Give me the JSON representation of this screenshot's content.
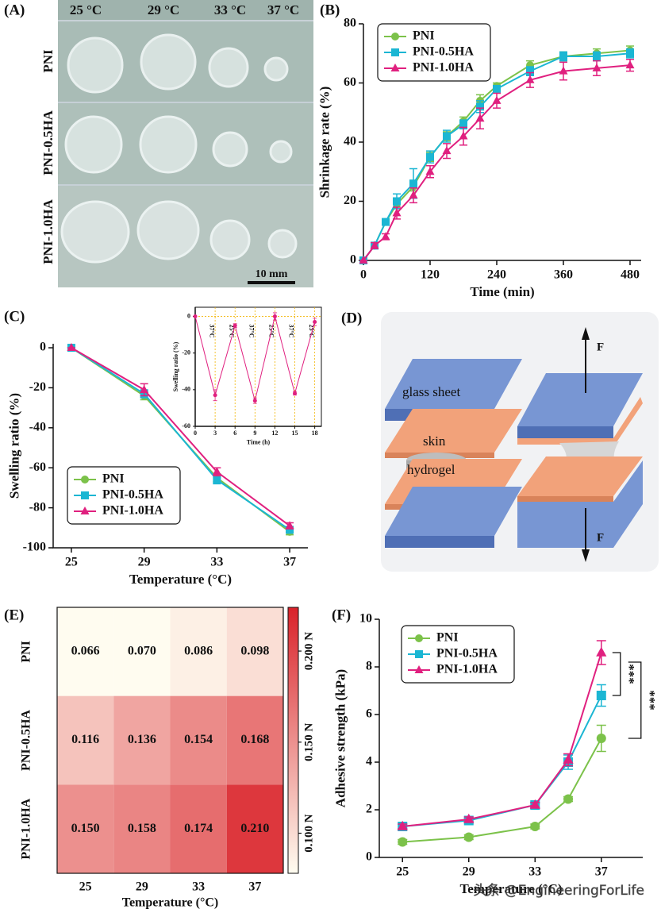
{
  "photo": {
    "panel": "(A)",
    "columns": [
      "25 °C",
      "29 °C",
      "33 °C",
      "37 °C"
    ],
    "rows": [
      "PNI",
      "PNI-0.5HA",
      "PNI-1.0HA"
    ],
    "scale_bar": "10 mm"
  },
  "diagram": {
    "panel": "(D)",
    "glass": "glass sheet",
    "skin": "skin",
    "gel": "hydrogel",
    "force_top": "F",
    "force_bottom": "F"
  },
  "watermark": "头条 @EngineeringForLife",
  "chart_data": [
    {
      "type": "line",
      "panel": "(B)",
      "xlabel": "Time (min)",
      "ylabel": "Shrinkage rate (%)",
      "x": [
        0,
        20,
        40,
        60,
        90,
        120,
        150,
        180,
        210,
        240,
        300,
        360,
        420,
        480
      ],
      "series": [
        {
          "name": "PNI",
          "color": "#7cc24a",
          "marker": "circle",
          "values": [
            0,
            5,
            13,
            19,
            25,
            35,
            42,
            47,
            54,
            59,
            66,
            69,
            70,
            71
          ],
          "errors": [
            0,
            1,
            1,
            1.5,
            1.5,
            1.5,
            1.5,
            1.5,
            2,
            1,
            1.5,
            1.5,
            1.5,
            1.5
          ]
        },
        {
          "name": "PNI-0.5HA",
          "color": "#1bb6d3",
          "marker": "square",
          "values": [
            0,
            5,
            13,
            20,
            26,
            35,
            42,
            46,
            52,
            58,
            64,
            69,
            69,
            70
          ],
          "errors": [
            0,
            1,
            1,
            2.5,
            5,
            2,
            2,
            1.5,
            2,
            1,
            1.5,
            1.5,
            1.5,
            1.5
          ]
        },
        {
          "name": "PNI-1.0HA",
          "color": "#e0207f",
          "marker": "triangle",
          "values": [
            0,
            5,
            8,
            16,
            22,
            30,
            37,
            42,
            48,
            54,
            61,
            64,
            65,
            66
          ],
          "errors": [
            0,
            1,
            1,
            2,
            2.5,
            2,
            2.5,
            3,
            3.5,
            2.5,
            2.5,
            3,
            2.5,
            2
          ]
        }
      ],
      "xlim": [
        0,
        500
      ],
      "xticks": [
        0,
        120,
        240,
        360,
        480
      ],
      "ylim": [
        0,
        80
      ],
      "yticks": [
        0,
        20,
        40,
        60,
        80
      ],
      "legend": "upper left"
    },
    {
      "type": "line",
      "panel": "(C)",
      "xlabel": "Temperature (°C)",
      "ylabel": "Swelling ratio (%)",
      "x": [
        25,
        29,
        33,
        37
      ],
      "series": [
        {
          "name": "PNI",
          "color": "#7cc24a",
          "marker": "circle",
          "values": [
            0,
            -24,
            -65,
            -92
          ],
          "errors": [
            0,
            2,
            2,
            1.5
          ]
        },
        {
          "name": "PNI-0.5HA",
          "color": "#1bb6d3",
          "marker": "square",
          "values": [
            0,
            -23,
            -66,
            -91
          ],
          "errors": [
            0,
            2,
            2,
            1.5
          ]
        },
        {
          "name": "PNI-1.0HA",
          "color": "#e0207f",
          "marker": "triangle",
          "values": [
            0,
            -21,
            -62,
            -89
          ],
          "errors": [
            0,
            3,
            2,
            1.5
          ]
        }
      ],
      "xlim": [
        24,
        38
      ],
      "xticks": [
        25,
        29,
        33,
        37
      ],
      "ylim": [
        -100,
        2
      ],
      "yticks": [
        -100,
        -80,
        -60,
        -40,
        -20,
        0
      ],
      "legend": "lower left"
    },
    {
      "type": "line",
      "inset": true,
      "xlabel": "Time (h)",
      "ylabel": "Swelling ratio (%)",
      "x": [
        0,
        3,
        6,
        9,
        12,
        15,
        18
      ],
      "series": [
        {
          "color": "#e0207f",
          "marker": "circle",
          "values": [
            0,
            -43,
            -5,
            -46,
            0,
            -42,
            -3
          ],
          "errors": [
            0,
            3,
            1,
            1.5,
            2,
            1,
            2
          ]
        }
      ],
      "phase_labels": [
        "37°C",
        "25°C",
        "37°C",
        "25°C",
        "37°C",
        "25°C"
      ],
      "xlim": [
        0,
        19
      ],
      "xticks": [
        0,
        3,
        6,
        9,
        12,
        15,
        18
      ],
      "ylim": [
        -60,
        5
      ],
      "yticks": [
        -60,
        -40,
        -20,
        0
      ],
      "grid_x": true
    },
    {
      "type": "heatmap",
      "panel": "(E)",
      "xlabel": "Temperature (°C)",
      "columns": [
        25,
        29,
        33,
        37
      ],
      "rows": [
        "PNI",
        "PNI-0.5HA",
        "PNI-1.0HA"
      ],
      "values": [
        [
          0.066,
          0.07,
          0.086,
          0.098
        ],
        [
          0.116,
          0.136,
          0.154,
          0.168
        ],
        [
          0.15,
          0.158,
          0.174,
          0.21
        ]
      ],
      "value_labels": [
        [
          "0.066",
          "0.070",
          "0.086",
          "0.098"
        ],
        [
          "0.116",
          "0.136",
          "0.154",
          "0.168"
        ],
        [
          "0.150",
          "0.158",
          "0.174",
          "0.210"
        ]
      ],
      "clim": [
        0.078,
        0.224
      ],
      "colors": [
        "#fffcf0",
        "#d9222a"
      ],
      "cticks": [
        {
          "value": 0.1,
          "label": "0.100 N"
        },
        {
          "value": 0.15,
          "label": "0.150 N"
        },
        {
          "value": 0.2,
          "label": "0.200 N"
        }
      ]
    },
    {
      "type": "line",
      "panel": "(F)",
      "xlabel": "Temperature (°C)",
      "ylabel": "Adhesive strength (kPa)",
      "x": [
        25,
        29,
        33,
        35,
        37
      ],
      "series": [
        {
          "name": "PNI",
          "color": "#7cc24a",
          "marker": "circle",
          "values": [
            0.65,
            0.85,
            1.3,
            2.45,
            5.0
          ],
          "errors": [
            0.1,
            0.1,
            0.1,
            0.1,
            0.55
          ]
        },
        {
          "name": "PNI-0.5HA",
          "color": "#1bb6d3",
          "marker": "square",
          "values": [
            1.3,
            1.55,
            2.2,
            4.0,
            6.8
          ],
          "errors": [
            0.1,
            0.1,
            0.1,
            0.3,
            0.45
          ]
        },
        {
          "name": "PNI-1.0HA",
          "color": "#e0207f",
          "marker": "triangle",
          "values": [
            1.3,
            1.6,
            2.2,
            4.1,
            8.6
          ],
          "errors": [
            0.1,
            0.1,
            0.1,
            0.25,
            0.5
          ]
        }
      ],
      "annotations": [
        "***",
        "***"
      ],
      "xlim": [
        23.6,
        39.5
      ],
      "xticks": [
        25,
        29,
        33,
        37
      ],
      "ylim": [
        0,
        10
      ],
      "yticks": [
        0,
        2,
        4,
        6,
        8,
        10
      ],
      "legend": "upper left"
    }
  ]
}
